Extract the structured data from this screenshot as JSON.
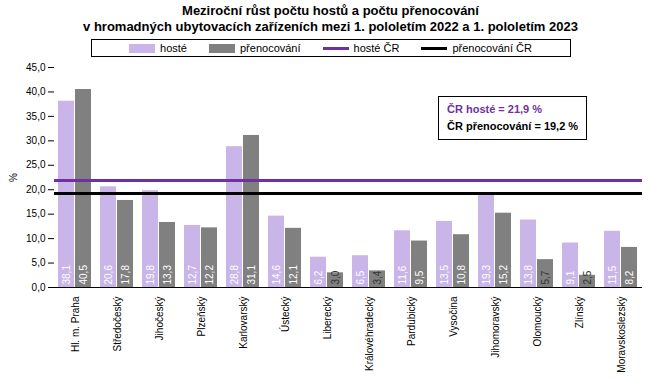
{
  "chart_data": {
    "type": "bar",
    "title": "Meziroční růst počtu hostů a počtu přenocování\nv hromadných ubytovacích zařízeních mezi 1. pololetím 2022 a 1. pololetím 2023",
    "y_label": "%",
    "categories": [
      "Hl. m. Praha",
      "Středočeský",
      "Jihočeský",
      "Plzeňský",
      "Karlovarský",
      "Ústecký",
      "Liberecký",
      "Královéhradecký",
      "Pardubický",
      "Vysočina",
      "Jihomoravský",
      "Olomoucký",
      "Zlínský",
      "Moravskoslezský"
    ],
    "series": [
      {
        "name": "hosté",
        "type": "bar",
        "color": "#c9b5e8",
        "values": [
          38.1,
          20.6,
          19.8,
          12.7,
          28.8,
          14.6,
          6.2,
          6.5,
          11.6,
          13.5,
          19.3,
          13.8,
          9.1,
          11.5
        ],
        "value_labels": [
          "38,1",
          "20,6",
          "19,8",
          "12,7",
          "28,8",
          "14,6",
          "6,2",
          "6,5",
          "11,6",
          "13,5",
          "19,3",
          "13,8",
          "9,1",
          "11,5"
        ]
      },
      {
        "name": "přenocování",
        "type": "bar",
        "color": "#808080",
        "values": [
          40.5,
          17.8,
          13.3,
          12.2,
          31.1,
          12.1,
          3.0,
          3.4,
          9.5,
          10.8,
          15.2,
          5.7,
          2.5,
          8.2
        ],
        "value_labels": [
          "40,5",
          "17,8",
          "13,3",
          "12,2",
          "31,1",
          "12,1",
          "3,0",
          "3,4",
          "9,5",
          "10,8",
          "15,2",
          "5,7",
          "2,5",
          "8,2"
        ]
      },
      {
        "name": "hosté ČR",
        "type": "line",
        "color": "#7030a0",
        "values": [
          21.9,
          21.9,
          21.9,
          21.9,
          21.9,
          21.9,
          21.9,
          21.9,
          21.9,
          21.9,
          21.9,
          21.9,
          21.9,
          21.9
        ]
      },
      {
        "name": "přenocování ČR",
        "type": "line",
        "color": "#000000",
        "values": [
          19.2,
          19.2,
          19.2,
          19.2,
          19.2,
          19.2,
          19.2,
          19.2,
          19.2,
          19.2,
          19.2,
          19.2,
          19.2,
          19.2
        ]
      }
    ],
    "annotations": [
      "ČR hosté = 21,9 %",
      "ČR přenocování = 19,2 %"
    ],
    "ylim": [
      0,
      45
    ],
    "yticks": [
      {
        "value": 0,
        "label": "0,0"
      },
      {
        "value": 5,
        "label": "5,0"
      },
      {
        "value": 10,
        "label": "10,0"
      },
      {
        "value": 15,
        "label": "15,0"
      },
      {
        "value": 20,
        "label": "20,0"
      },
      {
        "value": 25,
        "label": "25,0"
      },
      {
        "value": 30,
        "label": "30,0"
      },
      {
        "value": 35,
        "label": "35,0"
      },
      {
        "value": 40,
        "label": "40,0"
      },
      {
        "value": 45,
        "label": "45,0"
      }
    ],
    "grid": false,
    "legend": "top",
    "data_labels": true
  }
}
